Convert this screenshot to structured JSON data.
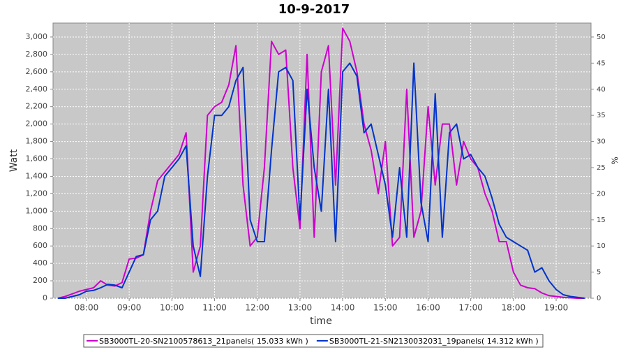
{
  "chart_data": {
    "type": "line",
    "title": "10-9-2017",
    "xlabel": "time",
    "ylabel": "Watt",
    "y2label": "%",
    "x": [
      "07:20",
      "07:30",
      "07:40",
      "07:50",
      "08:00",
      "08:10",
      "08:20",
      "08:30",
      "08:40",
      "08:50",
      "09:00",
      "09:10",
      "09:20",
      "09:30",
      "09:40",
      "09:50",
      "10:00",
      "10:10",
      "10:20",
      "10:30",
      "10:40",
      "10:50",
      "11:00",
      "11:10",
      "11:20",
      "11:30",
      "11:40",
      "11:50",
      "12:00",
      "12:10",
      "12:20",
      "12:30",
      "12:40",
      "12:50",
      "13:00",
      "13:10",
      "13:20",
      "13:30",
      "13:40",
      "13:50",
      "14:00",
      "14:10",
      "14:20",
      "14:30",
      "14:40",
      "14:50",
      "15:00",
      "15:10",
      "15:20",
      "15:30",
      "15:40",
      "15:50",
      "16:00",
      "16:10",
      "16:20",
      "16:30",
      "16:40",
      "16:50",
      "17:00",
      "17:10",
      "17:20",
      "17:30",
      "17:40",
      "17:50",
      "18:00",
      "18:10",
      "18:20",
      "18:30",
      "18:40",
      "18:50",
      "19:00",
      "19:10",
      "19:20",
      "19:30",
      "19:40"
    ],
    "series": [
      {
        "name": "SB3000TL-20-SN2100578613_21panels( 15.033 kWh )",
        "color": "#cc00cc",
        "values": [
          0,
          20,
          50,
          80,
          100,
          120,
          200,
          150,
          140,
          180,
          450,
          460,
          500,
          1000,
          1350,
          1450,
          1550,
          1650,
          1900,
          300,
          600,
          2100,
          2200,
          2250,
          2450,
          2900,
          1300,
          600,
          700,
          1500,
          2950,
          2800,
          2850,
          1500,
          800,
          2800,
          700,
          2600,
          2900,
          1300,
          3100,
          2950,
          2600,
          2000,
          1700,
          1200,
          1800,
          600,
          700,
          2400,
          700,
          1000,
          2200,
          1300,
          2000,
          2000,
          1300,
          1800,
          1600,
          1500,
          1200,
          1000,
          650,
          650,
          300,
          150,
          120,
          110,
          60,
          30,
          20,
          10,
          5,
          0,
          0
        ]
      },
      {
        "name": "SB3000TL-21-SN2130032031_19panels( 14.312 kWh )",
        "color": "#0033cc",
        "values": [
          0,
          0,
          20,
          40,
          80,
          90,
          120,
          160,
          150,
          120,
          300,
          480,
          500,
          900,
          1000,
          1400,
          1500,
          1600,
          1750,
          600,
          250,
          1400,
          2100,
          2100,
          2200,
          2500,
          2650,
          900,
          650,
          650,
          1700,
          2600,
          2650,
          2500,
          900,
          2400,
          1500,
          1000,
          2400,
          650,
          2600,
          2700,
          2550,
          1900,
          2000,
          1650,
          1300,
          700,
          1500,
          700,
          2700,
          1100,
          650,
          2350,
          700,
          1900,
          2000,
          1600,
          1650,
          1500,
          1400,
          1150,
          850,
          700,
          650,
          600,
          550,
          300,
          350,
          200,
          100,
          40,
          20,
          10,
          0
        ]
      }
    ],
    "xlim": [
      "07:13",
      "19:49"
    ],
    "xticks": [
      "08:00",
      "09:00",
      "10:00",
      "11:00",
      "12:00",
      "13:00",
      "14:00",
      "15:00",
      "16:00",
      "17:00",
      "18:00",
      "19:00"
    ],
    "ylim": [
      0,
      3160
    ],
    "yticks": [
      0,
      200,
      400,
      600,
      800,
      {
        "value": 1000,
        "label": "1,000"
      },
      {
        "value": 1200,
        "label": "1,200"
      },
      {
        "value": 1400,
        "label": "1,400"
      },
      {
        "value": 1600,
        "label": "1,600"
      },
      {
        "value": 1800,
        "label": "1,800"
      },
      {
        "value": 2000,
        "label": "2,000"
      },
      {
        "value": 2200,
        "label": "2,200"
      },
      {
        "value": 2400,
        "label": "2,400"
      },
      {
        "value": 2600,
        "label": "2,600"
      },
      {
        "value": 2800,
        "label": "2,800"
      },
      {
        "value": 3000,
        "label": "3,000"
      }
    ],
    "y2lim": [
      0,
      52.67
    ],
    "y2ticks": [
      0,
      5,
      10,
      15,
      20,
      25,
      30,
      35,
      40,
      45,
      50
    ],
    "grid": true,
    "legend": "bottom"
  }
}
